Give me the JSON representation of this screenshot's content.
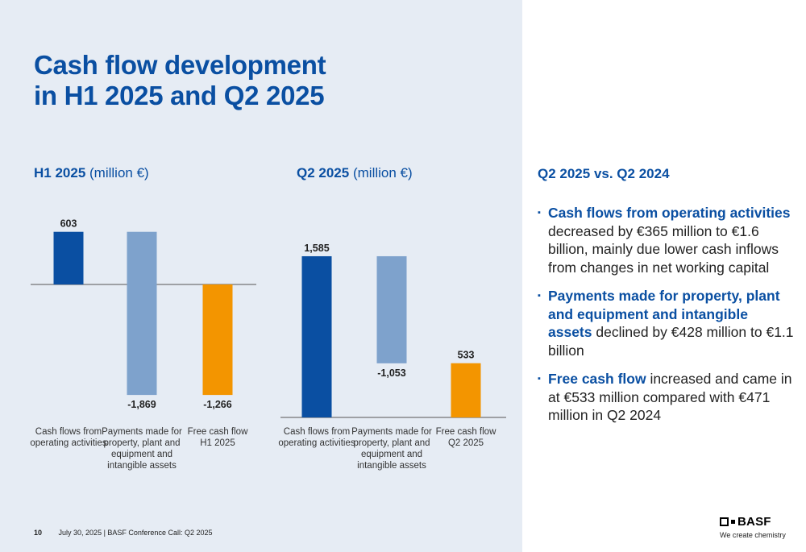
{
  "colors": {
    "title_blue": "#0a4fa2",
    "dark_blue_bar": "#0a4fa2",
    "light_blue_bar": "#7ea2cc",
    "orange_bar": "#f39500",
    "panel_bg": "#e6ecf4"
  },
  "title": {
    "line1": "Cash flow development",
    "line2": "in H1 2025 and Q2 2025"
  },
  "chart_data": [
    {
      "type": "bar",
      "heading_bold": "H1 2025",
      "heading_unit": "(million €)",
      "categories": [
        "Cash flows from operating activities",
        "Payments made for property, plant and equipment and intangible assets",
        "Free cash flow H1 2025"
      ],
      "values": [
        603,
        -1869,
        -1266
      ],
      "value_labels": [
        "603",
        "-1,869",
        "-1,266"
      ],
      "waterfall": true
    },
    {
      "type": "bar",
      "heading_bold": "Q2 2025",
      "heading_unit": "(million €)",
      "categories": [
        "Cash flows from operating activities",
        "Payments made for property, plant and equipment and intangible assets",
        "Free cash flow Q2 2025"
      ],
      "values": [
        1585,
        -1053,
        533
      ],
      "value_labels": [
        "1,585",
        "-1,053",
        "533"
      ],
      "waterfall": true
    }
  ],
  "category_labels": {
    "h1": [
      [
        "Cash flows from",
        "operating activities"
      ],
      [
        "Payments made for",
        "property, plant and",
        "equipment and",
        "intangible assets"
      ],
      [
        "Free cash flow",
        "H1 2025"
      ]
    ],
    "q2": [
      [
        "Cash flows from",
        "operating activities"
      ],
      [
        "Payments made for",
        "property, plant and",
        "equipment and",
        "intangible assets"
      ],
      [
        "Free cash flow",
        "Q2 2025"
      ]
    ]
  },
  "right_panel": {
    "heading": "Q2 2025 vs. Q2 2024",
    "bullet_marker": "▪",
    "bullets": [
      {
        "highlight": "Cash flows from operating activities",
        "text": "decreased by €365 million to €1.6 billion, mainly due lower cash inflows from changes in net working capital"
      },
      {
        "highlight": "Payments made for property, plant and equipment and intangible assets",
        "text": "declined by €428 million to €1.1 billion"
      },
      {
        "highlight": "Free cash flow",
        "text": "increased and came in at €533 million compared with €471 million in Q2 2024"
      }
    ]
  },
  "footer": {
    "page_number": "10",
    "text": "July 30, 2025 |   BASF Conference Call: Q2 2025"
  },
  "logo": {
    "word": "BASF",
    "tagline": "We create chemistry"
  }
}
